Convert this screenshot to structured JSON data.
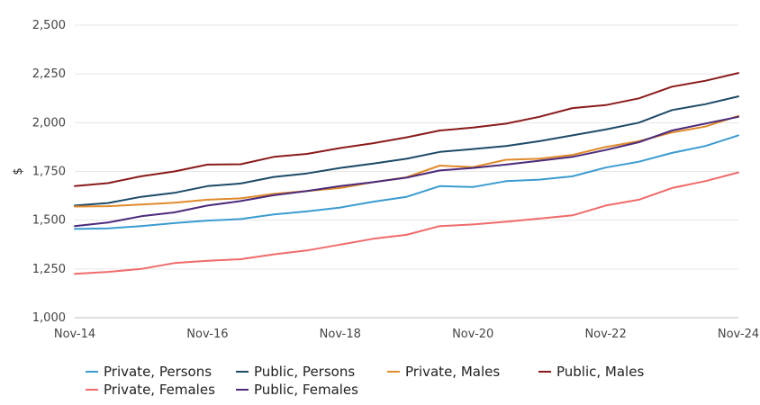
{
  "chart_data": {
    "type": "line",
    "title": "",
    "xlabel": "",
    "ylabel": "$",
    "ylim": [
      1000,
      2500
    ],
    "yticks": [
      1000,
      1250,
      1500,
      1750,
      2000,
      2250,
      2500
    ],
    "ytick_labels": [
      "1,000",
      "1,250",
      "1,500",
      "1,750",
      "2,000",
      "2,250",
      "2,500"
    ],
    "xtick_labels": [
      "Nov-14",
      "Nov-16",
      "Nov-18",
      "Nov-20",
      "Nov-22",
      "Nov-24"
    ],
    "xtick_positions": [
      0,
      4,
      8,
      12,
      16,
      20
    ],
    "x_count": 21,
    "grid": true,
    "legend_position": "bottom",
    "series": [
      {
        "name": "Private, Persons",
        "color": "#3a9bd0",
        "values": [
          1455,
          1458,
          1470,
          1485,
          1498,
          1506,
          1530,
          1545,
          1565,
          1595,
          1620,
          1675,
          1670,
          1700,
          1708,
          1725,
          1770,
          1800,
          1845,
          1880,
          1935
        ]
      },
      {
        "name": "Public, Persons",
        "color": "#1c4a66",
        "values": [
          1575,
          1588,
          1620,
          1640,
          1675,
          1688,
          1722,
          1740,
          1768,
          1790,
          1815,
          1850,
          1865,
          1880,
          1905,
          1935,
          1965,
          2000,
          2065,
          2095,
          2135
        ]
      },
      {
        "name": "Private, Males",
        "color": "#e08a2a",
        "values": [
          1570,
          1572,
          1580,
          1590,
          1605,
          1612,
          1635,
          1650,
          1665,
          1695,
          1720,
          1780,
          1772,
          1810,
          1815,
          1835,
          1875,
          1905,
          1950,
          1980,
          2035
        ]
      },
      {
        "name": "Public, Males",
        "color": "#8a1a1a",
        "values": [
          1675,
          1690,
          1725,
          1750,
          1785,
          1787,
          1825,
          1840,
          1870,
          1895,
          1925,
          1960,
          1975,
          1995,
          2030,
          2075,
          2090,
          2125,
          2185,
          2215,
          2255
        ]
      },
      {
        "name": "Private, Females",
        "color": "#f06a6a",
        "values": [
          1225,
          1235,
          1250,
          1280,
          1292,
          1300,
          1325,
          1345,
          1375,
          1405,
          1425,
          1470,
          1478,
          1492,
          1508,
          1525,
          1575,
          1605,
          1665,
          1700,
          1745
        ]
      },
      {
        "name": "Public, Females",
        "color": "#4b2a7a",
        "values": [
          1470,
          1488,
          1520,
          1540,
          1575,
          1598,
          1628,
          1650,
          1675,
          1695,
          1718,
          1755,
          1768,
          1785,
          1805,
          1825,
          1860,
          1900,
          1960,
          1995,
          2030
        ]
      }
    ]
  }
}
